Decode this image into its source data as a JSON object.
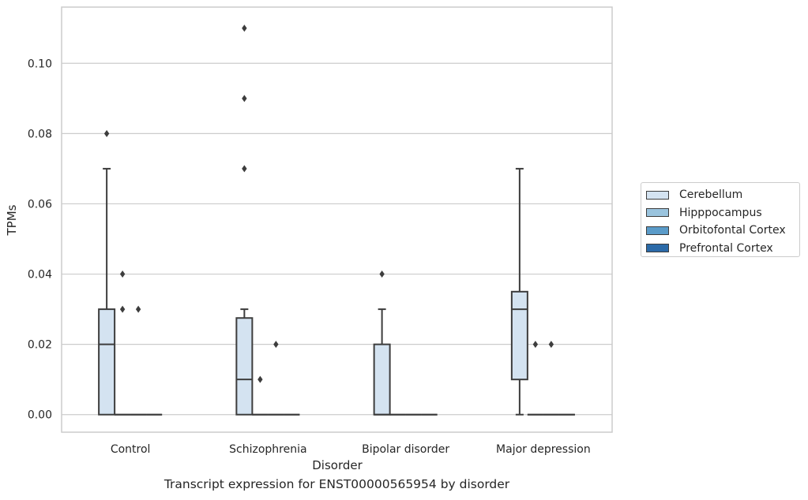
{
  "chart_data": {
    "type": "boxplot",
    "xlabel": "Disorder",
    "ylabel": "TPMs",
    "caption": "Transcript expression for ENST00000565954 by disorder",
    "ylim": [
      -0.005,
      0.116
    ],
    "yticks": [
      "0.00",
      "0.02",
      "0.04",
      "0.06",
      "0.08",
      "0.10"
    ],
    "ytick_values": [
      0,
      0.02,
      0.04,
      0.06,
      0.08,
      0.1
    ],
    "grid": "horizontal",
    "legend_position": "right",
    "categories": [
      "Control",
      "Schizophrenia",
      "Bipolar disorder",
      "Major depression"
    ],
    "series": [
      {
        "name": "Cerebellum",
        "color": "#d4e3f1",
        "boxes": [
          {
            "q1": 0.0,
            "median": 0.02,
            "q3": 0.03,
            "whisker_low": 0.0,
            "whisker_high": 0.07,
            "outliers": [
              0.08
            ]
          },
          {
            "q1": 0.0,
            "median": 0.01,
            "q3": 0.0275,
            "whisker_low": 0.0,
            "whisker_high": 0.03,
            "outliers": [
              0.07,
              0.09,
              0.11
            ]
          },
          {
            "q1": 0.0,
            "median": 0.0,
            "q3": 0.02,
            "whisker_low": 0.0,
            "whisker_high": 0.03,
            "outliers": [
              0.04
            ]
          },
          {
            "q1": 0.01,
            "median": 0.03,
            "q3": 0.035,
            "whisker_low": 0.0,
            "whisker_high": 0.07,
            "outliers": []
          }
        ]
      },
      {
        "name": "Hipppocampus",
        "color": "#9ac4de",
        "boxes": [
          {
            "q1": 0,
            "median": 0,
            "q3": 0,
            "whisker_low": 0,
            "whisker_high": 0,
            "outliers": [
              0.03,
              0.04
            ]
          },
          {
            "q1": 0,
            "median": 0,
            "q3": 0,
            "whisker_low": 0,
            "whisker_high": 0,
            "outliers": [
              0.01
            ]
          },
          {
            "q1": 0,
            "median": 0,
            "q3": 0,
            "whisker_low": 0,
            "whisker_high": 0,
            "outliers": []
          },
          {
            "q1": 0,
            "median": 0,
            "q3": 0,
            "whisker_low": 0,
            "whisker_high": 0,
            "outliers": [
              0.02
            ]
          }
        ]
      },
      {
        "name": "Orbitofontal Cortex",
        "color": "#5a9bc9",
        "boxes": [
          {
            "q1": 0,
            "median": 0,
            "q3": 0,
            "whisker_low": 0,
            "whisker_high": 0,
            "outliers": [
              0.03
            ]
          },
          {
            "q1": 0,
            "median": 0,
            "q3": 0,
            "whisker_low": 0,
            "whisker_high": 0,
            "outliers": [
              0.02
            ]
          },
          {
            "q1": 0,
            "median": 0,
            "q3": 0,
            "whisker_low": 0,
            "whisker_high": 0,
            "outliers": []
          },
          {
            "q1": 0,
            "median": 0,
            "q3": 0,
            "whisker_low": 0,
            "whisker_high": 0,
            "outliers": [
              0.02
            ]
          }
        ]
      },
      {
        "name": "Prefrontal Cortex",
        "color": "#2b6aa8",
        "boxes": [
          {
            "q1": 0,
            "median": 0,
            "q3": 0,
            "whisker_low": 0,
            "whisker_high": 0,
            "outliers": []
          },
          {
            "q1": 0,
            "median": 0,
            "q3": 0,
            "whisker_low": 0,
            "whisker_high": 0,
            "outliers": []
          },
          {
            "q1": 0,
            "median": 0,
            "q3": 0,
            "whisker_low": 0,
            "whisker_high": 0,
            "outliers": []
          },
          {
            "q1": 0,
            "median": 0,
            "q3": 0,
            "whisker_low": 0,
            "whisker_high": 0,
            "outliers": []
          }
        ]
      }
    ],
    "colors": {
      "line": "#3d3d3d",
      "grid": "#cccccc",
      "frame": "#cccccc"
    }
  }
}
